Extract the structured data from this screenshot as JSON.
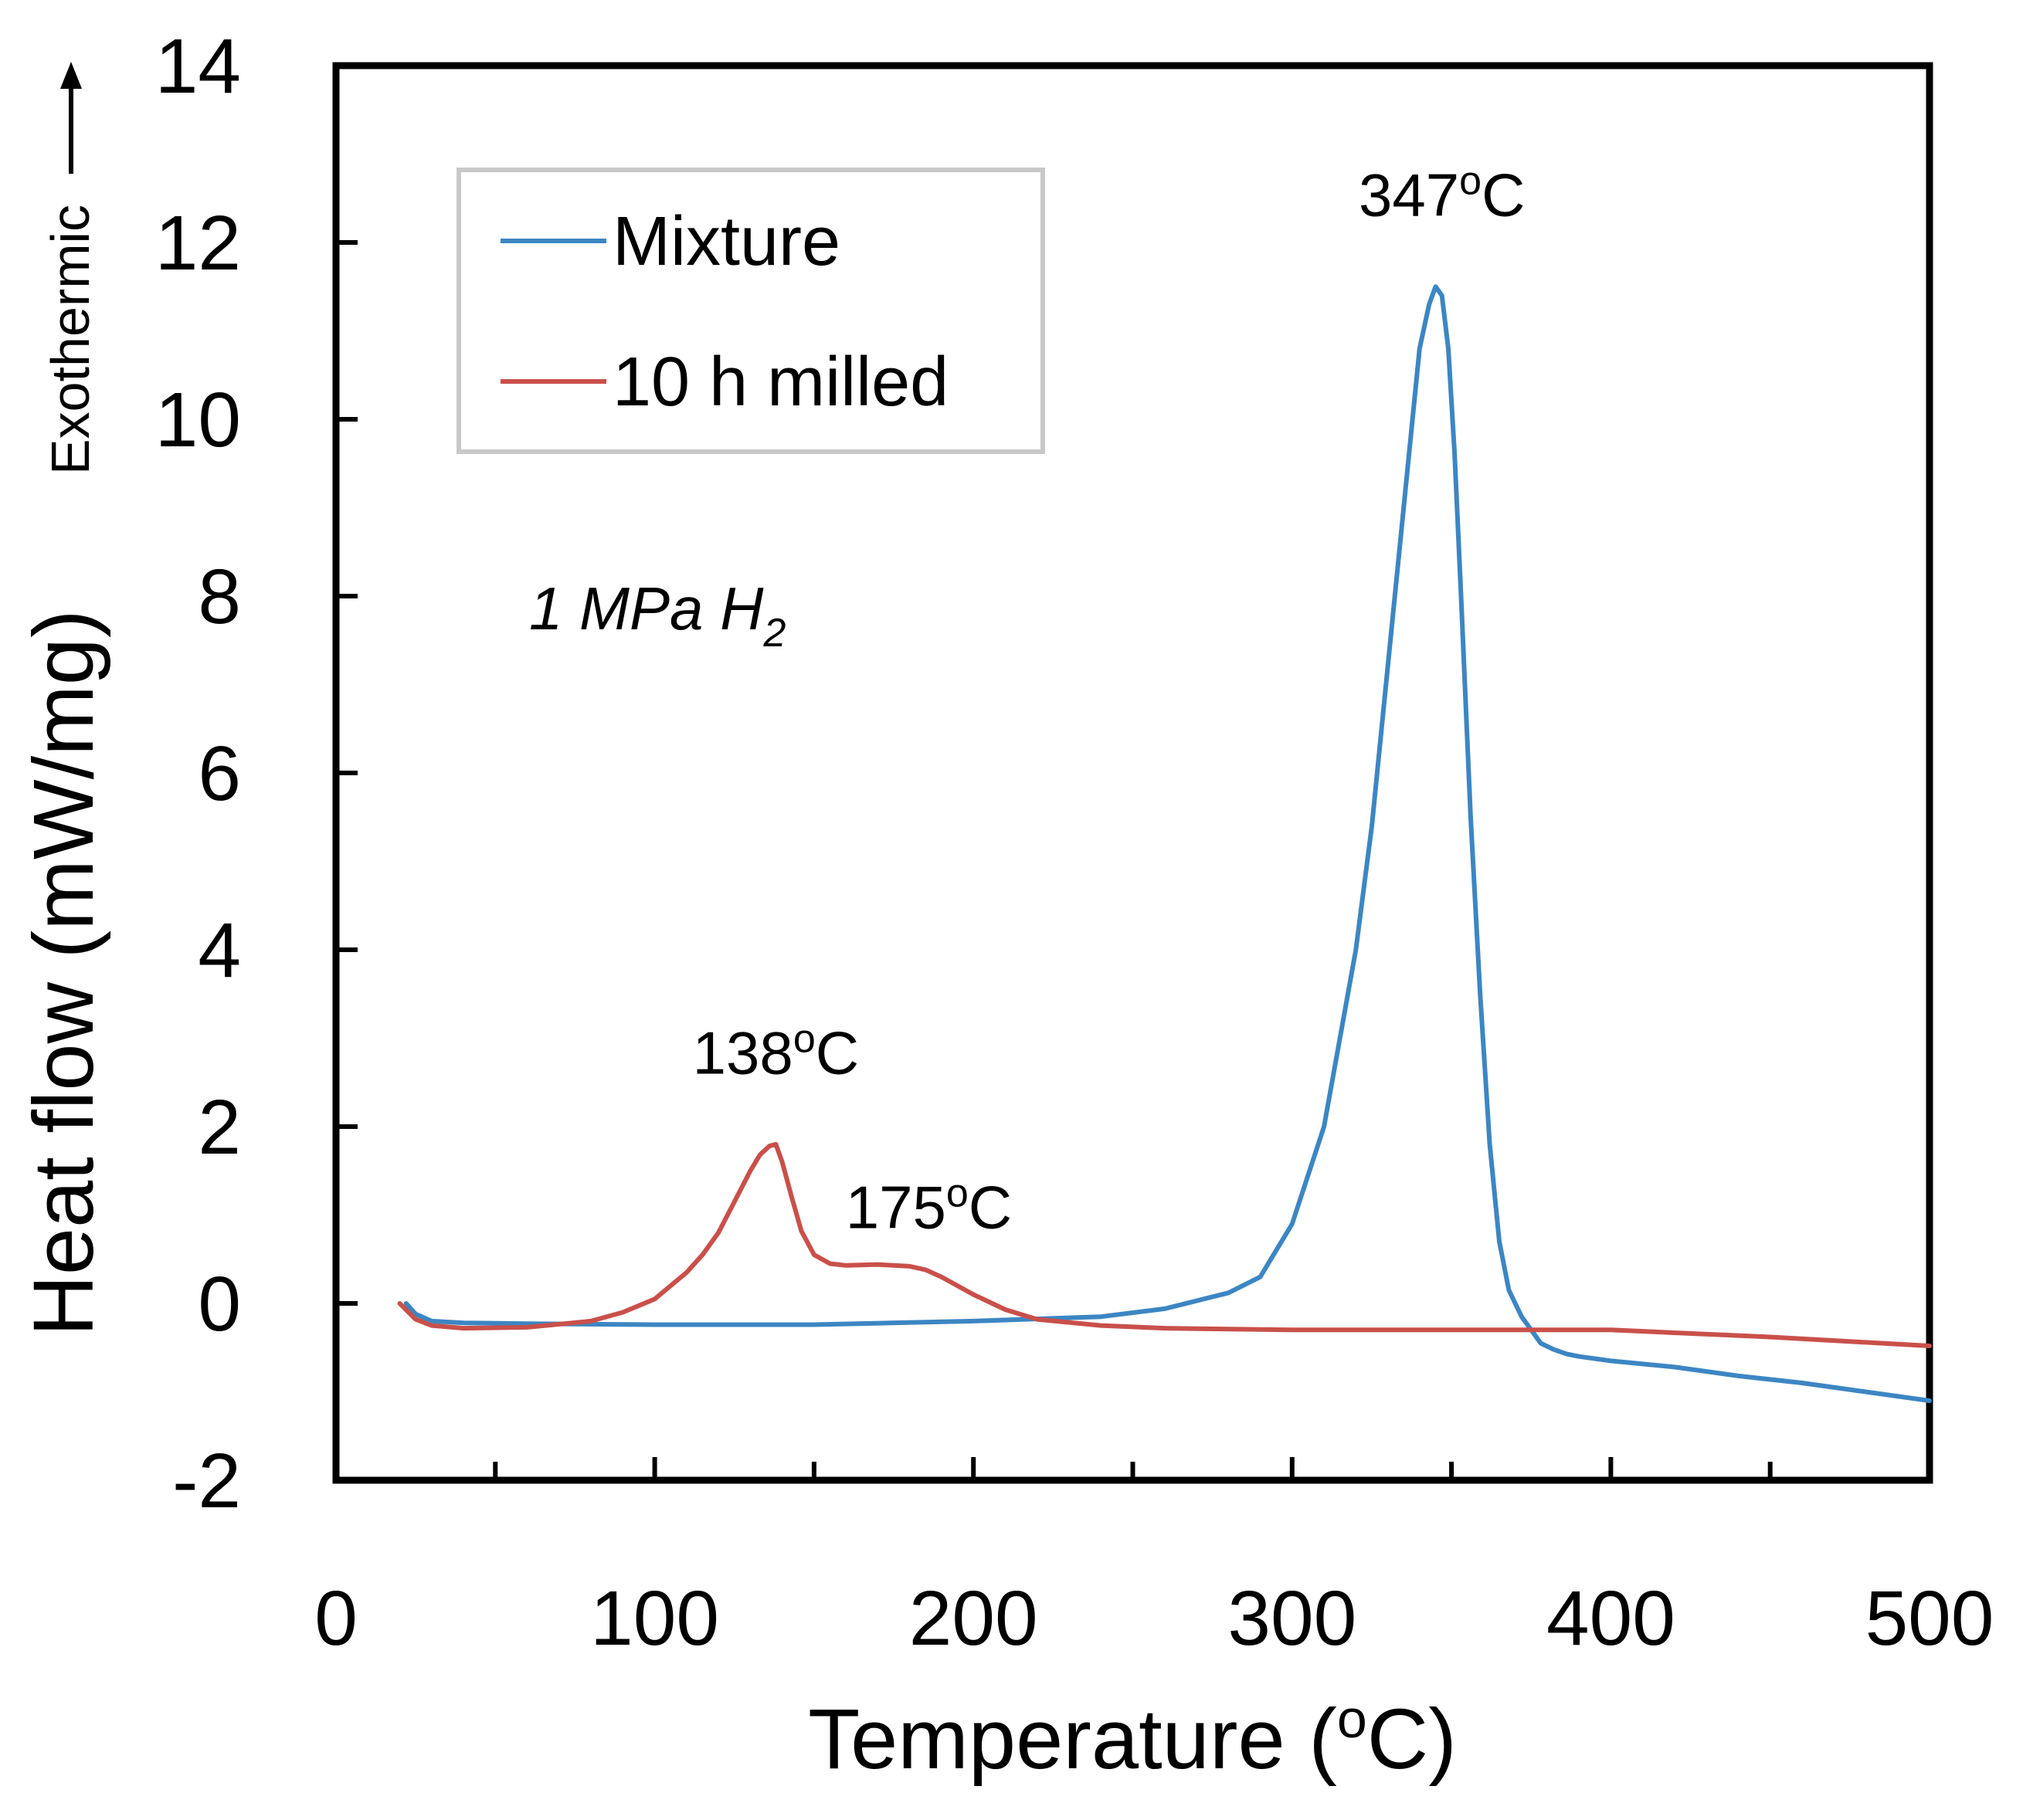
{
  "chart_data": {
    "type": "line",
    "title": "",
    "xlabel_main": "Temperature (",
    "xlabel_sup": "o",
    "xlabel_end": "C)",
    "ylabel": "Heat flow (mW/mg)",
    "ylabel_exo": "Exothermic",
    "xlim": [
      0,
      500
    ],
    "ylim": [
      -2,
      14
    ],
    "x_major_ticks": [
      0,
      100,
      200,
      300,
      400,
      500
    ],
    "x_tick_labels": [
      "0",
      "100",
      "200",
      "300",
      "400",
      "500"
    ],
    "x_minor_ticks": [
      50,
      150,
      250,
      350,
      450
    ],
    "y_ticks": [
      -2,
      0,
      2,
      4,
      6,
      8,
      10,
      12,
      14
    ],
    "y_tick_labels": [
      "-2",
      "0",
      "2",
      "4",
      "6",
      "8",
      "10",
      "12",
      "14"
    ],
    "grid": false,
    "legend_position": "top-left",
    "condition": {
      "main": "1 MPa H",
      "sub": "2"
    },
    "annotations": [
      {
        "number": "347",
        "sup": "o",
        "unit": "C",
        "x": 347,
        "y": 12.3
      },
      {
        "number": "138",
        "sup": "o",
        "unit": "C",
        "x": 138,
        "y": 2.6
      },
      {
        "number": "175",
        "sup": "o",
        "unit": "C",
        "x": 186,
        "y": 0.85
      }
    ],
    "series": [
      {
        "name": "Mixture",
        "color": "#3c86c3",
        "x": [
          22,
          25,
          30,
          40,
          60,
          100,
          150,
          200,
          240,
          260,
          280,
          290,
          300,
          310,
          320,
          325,
          330,
          335,
          340,
          343,
          345,
          347,
          349,
          351,
          353,
          356,
          359,
          362,
          365,
          368,
          372,
          375,
          378,
          382,
          386,
          390,
          400,
          420,
          440,
          460,
          480,
          500
        ],
        "values": [
          0.0,
          -0.12,
          -0.2,
          -0.22,
          -0.23,
          -0.24,
          -0.24,
          -0.2,
          -0.15,
          -0.06,
          0.12,
          0.3,
          0.9,
          2.0,
          4.0,
          5.4,
          7.2,
          9.0,
          10.8,
          11.3,
          11.5,
          11.4,
          10.8,
          9.6,
          8.0,
          5.5,
          3.5,
          1.8,
          0.7,
          0.15,
          -0.15,
          -0.3,
          -0.45,
          -0.52,
          -0.57,
          -0.6,
          -0.65,
          -0.72,
          -0.82,
          -0.9,
          -1.0,
          -1.1
        ]
      },
      {
        "name": "10 h milled",
        "color": "#c9504a",
        "x": [
          20,
          25,
          30,
          40,
          60,
          80,
          90,
          100,
          110,
          115,
          120,
          125,
          130,
          133,
          136,
          138,
          140,
          143,
          146,
          150,
          155,
          160,
          170,
          180,
          185,
          190,
          200,
          210,
          220,
          240,
          260,
          300,
          350,
          400,
          450,
          500
        ],
        "values": [
          0.0,
          -0.18,
          -0.25,
          -0.28,
          -0.27,
          -0.2,
          -0.1,
          0.05,
          0.35,
          0.55,
          0.8,
          1.15,
          1.5,
          1.68,
          1.78,
          1.8,
          1.6,
          1.2,
          0.82,
          0.55,
          0.45,
          0.43,
          0.44,
          0.42,
          0.38,
          0.3,
          0.1,
          -0.07,
          -0.18,
          -0.25,
          -0.28,
          -0.3,
          -0.3,
          -0.3,
          -0.38,
          -0.48
        ]
      }
    ]
  }
}
